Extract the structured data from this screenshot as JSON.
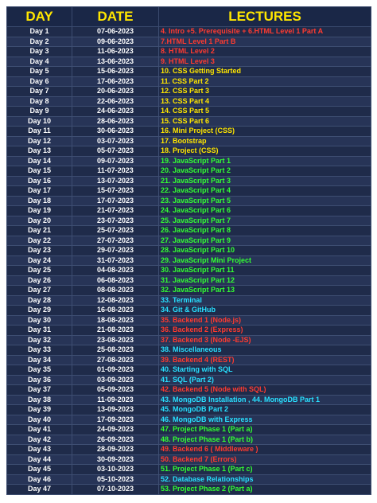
{
  "headers": {
    "day": "DAY",
    "date": "DATE",
    "lectures": "LECTURES"
  },
  "colors": {
    "red": "#ff3b30",
    "yellow": "#ffe600",
    "cyan": "#28e0ff",
    "green": "#33ff33",
    "white": "#ffffff",
    "header_bg": "#1a2747",
    "row_bg": "#1f2b4a"
  },
  "rows": [
    {
      "day": "Day 1",
      "date": "07-06-2023",
      "lecture": "4. Intro +5. Prerequisite + 6.HTML Level 1 Part A",
      "color": "#ff3b30"
    },
    {
      "day": "Day 2",
      "date": "09-06-2023",
      "lecture": "7.HTML Level 1 Part B",
      "color": "#ff3b30"
    },
    {
      "day": "Day 3",
      "date": "11-06-2023",
      "lecture": "8. HTML Level 2",
      "color": "#ff3b30"
    },
    {
      "day": "Day 4",
      "date": "13-06-2023",
      "lecture": "9. HTML Level 3",
      "color": "#ff3b30"
    },
    {
      "day": "Day 5",
      "date": "15-06-2023",
      "lecture": "10. CSS Getting Started",
      "color": "#ffe600"
    },
    {
      "day": "Day 6",
      "date": "17-06-2023",
      "lecture": "11. CSS Part 2",
      "color": "#ffe600"
    },
    {
      "day": "Day 7",
      "date": "20-06-2023",
      "lecture": "12. CSS Part 3",
      "color": "#ffe600"
    },
    {
      "day": "Day 8",
      "date": "22-06-2023",
      "lecture": "13. CSS Part 4",
      "color": "#ffe600"
    },
    {
      "day": "Day 9",
      "date": "24-06-2023",
      "lecture": "14. CSS Part 5",
      "color": "#ffe600"
    },
    {
      "day": "Day 10",
      "date": "28-06-2023",
      "lecture": "15. CSS Part 6",
      "color": "#ffe600"
    },
    {
      "day": "Day 11",
      "date": "30-06-2023",
      "lecture": "16. Mini Project (CSS)",
      "color": "#ffe600"
    },
    {
      "day": "Day 12",
      "date": "03-07-2023",
      "lecture": "17. Bootstrap",
      "color": "#ffe600"
    },
    {
      "day": "Day 13",
      "date": "05-07-2023",
      "lecture": "18. Project (CSS)",
      "color": "#ffe600"
    },
    {
      "day": "Day 14",
      "date": "09-07-2023",
      "lecture": "19. JavaScript Part 1",
      "color": "#33ff33"
    },
    {
      "day": "Day 15",
      "date": "11-07-2023",
      "lecture": "20. JavaScript Part 2",
      "color": "#33ff33"
    },
    {
      "day": "Day 16",
      "date": "13-07-2023",
      "lecture": "21. JavaScript Part 3",
      "color": "#33ff33"
    },
    {
      "day": "Day 17",
      "date": "15-07-2023",
      "lecture": "22. JavaScript Part 4",
      "color": "#33ff33"
    },
    {
      "day": "Day 18",
      "date": "17-07-2023",
      "lecture": "23. JavaScript Part 5",
      "color": "#33ff33"
    },
    {
      "day": "Day 19",
      "date": "21-07-2023",
      "lecture": "24. JavaScript Part 6",
      "color": "#33ff33"
    },
    {
      "day": "Day 20",
      "date": "23-07-2023",
      "lecture": "25. JavaScript Part 7",
      "color": "#33ff33"
    },
    {
      "day": "Day 21",
      "date": "25-07-2023",
      "lecture": "26. JavaScript Part 8",
      "color": "#33ff33"
    },
    {
      "day": "Day 22",
      "date": "27-07-2023",
      "lecture": "27. JavaScript Part 9",
      "color": "#33ff33"
    },
    {
      "day": "Day 23",
      "date": "29-07-2023",
      "lecture": "28. JavaScript Part 10",
      "color": "#33ff33"
    },
    {
      "day": "Day 24",
      "date": "31-07-2023",
      "lecture": "29. JavaScript Mini Project",
      "color": "#33ff33"
    },
    {
      "day": "Day 25",
      "date": "04-08-2023",
      "lecture": "30. JavaScript Part 11",
      "color": "#33ff33"
    },
    {
      "day": "Day 26",
      "date": "06-08-2023",
      "lecture": "31. JavaScript Part 12",
      "color": "#33ff33"
    },
    {
      "day": "Day 27",
      "date": "08-08-2023",
      "lecture": "32. JavaScript Part 13",
      "color": "#33ff33"
    },
    {
      "day": "Day 28",
      "date": "12-08-2023",
      "lecture": "33. Terminal",
      "color": "#28e0ff"
    },
    {
      "day": "Day 29",
      "date": "16-08-2023",
      "lecture": "34. Git & GitHub",
      "color": "#28e0ff"
    },
    {
      "day": "Day 30",
      "date": "18-08-2023",
      "lecture": "35. Backend 1 (Node.js)",
      "color": "#ff3b30"
    },
    {
      "day": "Day 31",
      "date": "21-08-2023",
      "lecture": "36. Backend 2 (Express)",
      "color": "#ff3b30"
    },
    {
      "day": "Day 32",
      "date": "23-08-2023",
      "lecture": "37. Backend 3 (Node -EJS)",
      "color": "#ff3b30"
    },
    {
      "day": "Day 33",
      "date": "25-08-2023",
      "lecture": "38. Miscellaneous",
      "color": "#28e0ff"
    },
    {
      "day": "Day 34",
      "date": "27-08-2023",
      "lecture": "39. Backend 4 (REST)",
      "color": "#ff3b30"
    },
    {
      "day": "Day 35",
      "date": "01-09-2023",
      "lecture": "40. Starting with SQL",
      "color": "#28e0ff"
    },
    {
      "day": "Day 36",
      "date": "03-09-2023",
      "lecture": "41. SQL (Part 2)",
      "color": "#28e0ff"
    },
    {
      "day": "Day 37",
      "date": "05-09-2023",
      "lecture": "42. Backend 5 (Node with SQL)",
      "color": "#ff3b30"
    },
    {
      "day": "Day 38",
      "date": "11-09-2023",
      "lecture": "43. MongoDB Installation , 44. MongoDB Part 1",
      "color": "#28e0ff"
    },
    {
      "day": "Day 39",
      "date": "13-09-2023",
      "lecture": "45. MongoDB Part 2",
      "color": "#28e0ff"
    },
    {
      "day": "Day 40",
      "date": "17-09-2023",
      "lecture": "46. MongoDB with Express",
      "color": "#28e0ff"
    },
    {
      "day": "Day 41",
      "date": "24-09-2023",
      "lecture": "47. Project Phase 1 (Part a)",
      "color": "#33ff33"
    },
    {
      "day": "Day 42",
      "date": "26-09-2023",
      "lecture": "48. Project Phase 1 (Part b)",
      "color": "#33ff33"
    },
    {
      "day": "Day 43",
      "date": "28-09-2023",
      "lecture": "49. Backend 6 ( Middleware )",
      "color": "#ff3b30"
    },
    {
      "day": "Day 44",
      "date": "30-09-2023",
      "lecture": "50. Backend 7 (Errors)",
      "color": "#ff3b30"
    },
    {
      "day": "Day 45",
      "date": "03-10-2023",
      "lecture": "51. Project Phase 1 (Part c)",
      "color": "#33ff33"
    },
    {
      "day": "Day 46",
      "date": "05-10-2023",
      "lecture": "52. Database Relationships",
      "color": "#28e0ff"
    },
    {
      "day": "Day 47",
      "date": "07-10-2023",
      "lecture": "53. Project Phase 2 (Part a)",
      "color": "#33ff33"
    }
  ]
}
